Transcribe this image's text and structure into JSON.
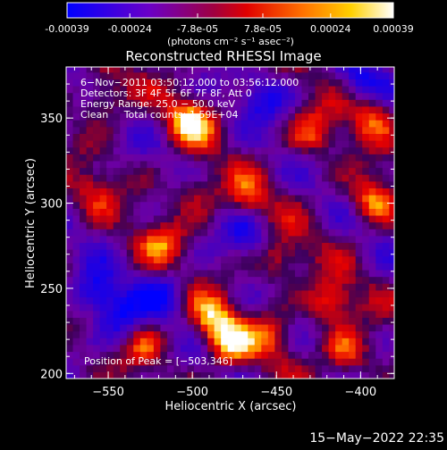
{
  "colorbar": {
    "tick_labels": [
      "-0.00039",
      "-0.00024",
      "-7.8e-05",
      "7.8e-05",
      "0.00024",
      "0.00039"
    ],
    "tick_values": [
      -0.00039,
      -0.00024,
      -7.8e-05,
      7.8e-05,
      0.00024,
      0.00039
    ],
    "range": [
      -0.00039,
      0.00039
    ],
    "units": "(photons cm⁻² s⁻¹ asec⁻²)",
    "colors": [
      "#0000ff",
      "#7a00c0",
      "#c00000",
      "#ff2000",
      "#ff7a00",
      "#ffd000",
      "#ffffff"
    ]
  },
  "chart_data": {
    "type": "heatmap",
    "title": "Reconstructed RHESSI Image",
    "xlabel": "Heliocentric X (arcsec)",
    "ylabel": "Heliocentric Y (arcsec)",
    "xlim": [
      -575,
      -380
    ],
    "ylim": [
      197,
      380
    ],
    "x_ticks": [
      -550,
      -500,
      -450,
      -400
    ],
    "x_tick_labels": [
      "−550",
      "−500",
      "−450",
      "−400"
    ],
    "y_ticks": [
      200,
      250,
      300,
      350
    ],
    "y_tick_labels": [
      "200",
      "250",
      "300",
      "350"
    ],
    "annotations": [
      "6−Nov−2011 03:50:12.000 to 03:56:12.000",
      "Detectors: 3F 4F 5F 6F 7F 8F, Att 0",
      "Energy Range: 25.0 − 50.0 keV",
      "Clean     Total counts: 1.59E+04"
    ],
    "peak_label": "Position of Peak = [−503,346]",
    "peak_position": [
      -503,
      346
    ],
    "bright_regions": [
      {
        "x": -503,
        "y": 346,
        "level": 1.0
      },
      {
        "x": -490,
        "y": 230,
        "level": 0.85
      },
      {
        "x": -480,
        "y": 215,
        "level": 0.8
      },
      {
        "x": -395,
        "y": 300,
        "level": 0.85
      },
      {
        "x": -395,
        "y": 350,
        "level": 0.7
      },
      {
        "x": -420,
        "y": 240,
        "level": 0.8
      },
      {
        "x": -410,
        "y": 210,
        "level": 0.75
      },
      {
        "x": -430,
        "y": 340,
        "level": 0.65
      },
      {
        "x": -520,
        "y": 275,
        "level": 0.6
      },
      {
        "x": -555,
        "y": 360,
        "level": 0.6
      },
      {
        "x": -560,
        "y": 305,
        "level": 0.45
      },
      {
        "x": -470,
        "y": 300,
        "level": 0.55
      },
      {
        "x": -450,
        "y": 265,
        "level": 0.6
      },
      {
        "x": -455,
        "y": 220,
        "level": 0.55
      },
      {
        "x": -530,
        "y": 215,
        "level": 0.5
      },
      {
        "x": -500,
        "y": 305,
        "level": 0.55
      }
    ],
    "dark_regions": [
      {
        "x": -560,
        "y": 245,
        "level": -0.85
      },
      {
        "x": -545,
        "y": 230,
        "level": -0.7
      },
      {
        "x": -460,
        "y": 360,
        "level": -0.6
      },
      {
        "x": -470,
        "y": 280,
        "level": -0.5
      },
      {
        "x": -520,
        "y": 245,
        "level": -0.6
      },
      {
        "x": -400,
        "y": 370,
        "level": -0.55
      }
    ]
  },
  "timestamp": "15−May−2022 22:35"
}
